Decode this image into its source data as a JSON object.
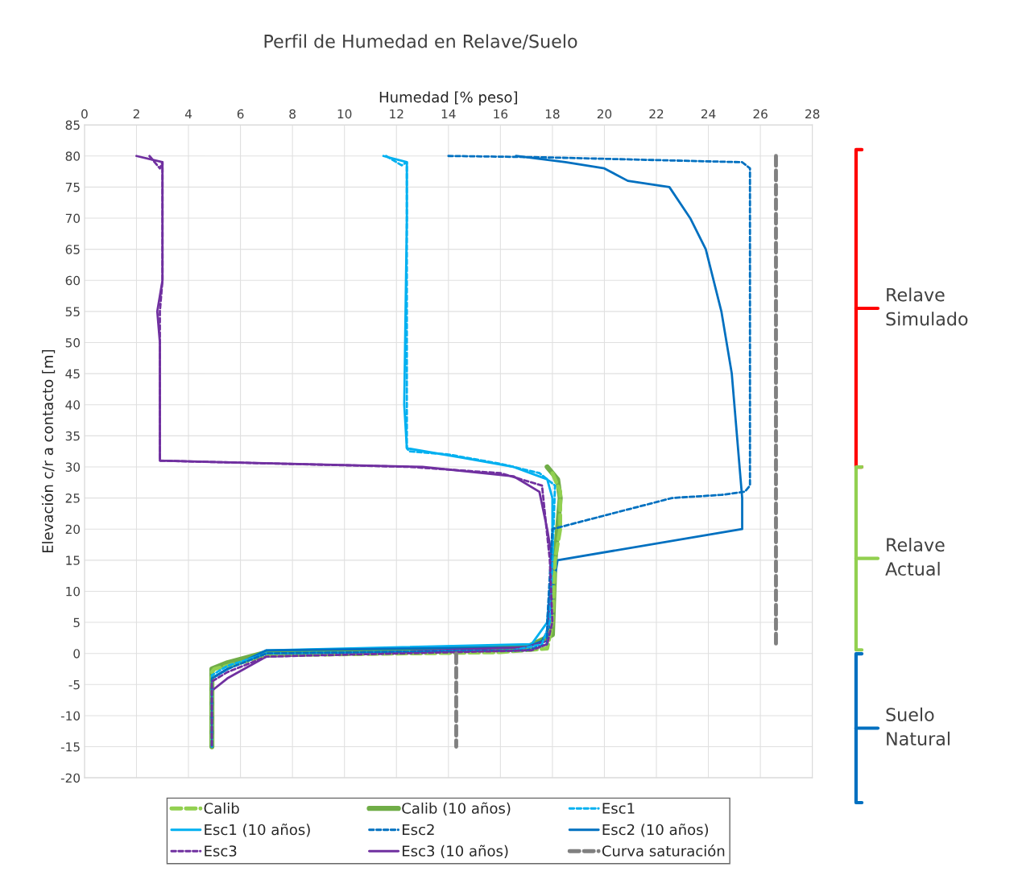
{
  "chart_data": {
    "type": "line",
    "title": "Perfil de Humedad en Relave/Suelo",
    "xlabel": "Humedad [% peso]",
    "ylabel": "Elevación c/r a contacto [m]",
    "xlim": [
      0,
      28
    ],
    "xticks": [
      0,
      2,
      4,
      6,
      8,
      10,
      12,
      14,
      16,
      18,
      20,
      22,
      24,
      26,
      28
    ],
    "ylim": [
      -20,
      85
    ],
    "yticks": [
      -20,
      -15,
      -10,
      -5,
      0,
      5,
      10,
      15,
      20,
      25,
      30,
      35,
      40,
      45,
      50,
      55,
      60,
      65,
      70,
      75,
      80,
      85
    ],
    "grid": true,
    "legend": "bottom",
    "marker": "none",
    "series": [
      {
        "name": "Calib",
        "color": "#92d050",
        "line_style": "dashed",
        "x": [
          18.0,
          18.3,
          18.3,
          18.1,
          18.0,
          17.8,
          16.0,
          7.0,
          6.0,
          5.0,
          4.9,
          4.9
        ],
        "values": [
          29,
          26,
          20,
          15,
          5,
          0.8,
          0.2,
          -0.3,
          -1.5,
          -2.5,
          -3,
          -15
        ]
      },
      {
        "name": "Calib (10 años)",
        "color": "#70ad47",
        "line_style": "solid",
        "x": [
          17.8,
          18.2,
          18.3,
          18.1,
          18.0,
          17.0,
          7.0,
          5.5,
          4.9,
          4.9
        ],
        "values": [
          30,
          28,
          25,
          15,
          3,
          1,
          0.2,
          -1.5,
          -2.5,
          -15
        ]
      },
      {
        "name": "Esc1",
        "color": "#00b0f0",
        "line_style": "dashed",
        "x": [
          11.6,
          12.2,
          12.4,
          12.4,
          12.5,
          14.0,
          16.0,
          17.5,
          18.1,
          18.0,
          17.9,
          17.6,
          16.5,
          7.0,
          5.5,
          4.9,
          4.9
        ],
        "values": [
          80,
          78.5,
          79,
          33,
          32.5,
          32,
          30.5,
          29,
          27,
          15,
          5,
          1.5,
          0.5,
          0,
          -2,
          -3.5,
          -15
        ]
      },
      {
        "name": "Esc1 (10 años)",
        "color": "#00b0f0",
        "line_style": "solid",
        "x": [
          11.5,
          12.4,
          12.4,
          12.3,
          12.4,
          14.5,
          16.5,
          17.8,
          18.0,
          18.0,
          17.8,
          17.2,
          7.0,
          5.5,
          4.9,
          4.9
        ],
        "values": [
          80,
          79,
          70,
          40,
          33,
          31.5,
          30,
          28,
          25,
          15,
          5,
          1.5,
          0.5,
          -2.5,
          -4,
          -15
        ]
      },
      {
        "name": "Esc2",
        "color": "#0070c0",
        "line_style": "dashed",
        "x": [
          14.0,
          17.5,
          25.3,
          25.6,
          25.6,
          25.4,
          24.5,
          22.6,
          18.0,
          17.8,
          17.8,
          17.0,
          7.0,
          5.5,
          4.9,
          4.9
        ],
        "values": [
          80,
          79.8,
          79,
          78,
          27,
          26,
          25.5,
          25,
          20,
          5,
          1.5,
          0.5,
          0,
          -2.5,
          -4,
          -15
        ]
      },
      {
        "name": "Esc2 (10 años)",
        "color": "#0070c0",
        "line_style": "solid",
        "x": [
          16.6,
          18.5,
          20.0,
          20.9,
          22.5,
          23.3,
          23.9,
          24.5,
          24.9,
          25.0,
          25.1,
          25.3,
          25.3,
          18.2,
          18.0,
          18.0,
          17.6,
          17.0,
          7.0,
          5.5,
          4.9,
          4.9
        ],
        "values": [
          80,
          79,
          78,
          76,
          75,
          70,
          65,
          55,
          45,
          40,
          35,
          25,
          20,
          15,
          10,
          5,
          2,
          1,
          0.5,
          -2.5,
          -4,
          -15
        ]
      },
      {
        "name": "Esc3",
        "color": "#7030a0",
        "line_style": "dashed",
        "x": [
          2.5,
          2.9,
          3.0,
          3.0,
          2.9,
          2.9,
          12.5,
          16.0,
          17.6,
          17.9,
          18.0,
          17.8,
          17.2,
          7.0,
          5.5,
          4.9,
          4.9
        ],
        "values": [
          80,
          78,
          79,
          60,
          55,
          31,
          30,
          29,
          27,
          15,
          5,
          1.5,
          0.5,
          -0.5,
          -3,
          -4.5,
          -15
        ]
      },
      {
        "name": "Esc3 (10 años)",
        "color": "#7030a0",
        "line_style": "solid",
        "x": [
          2.0,
          3.0,
          3.0,
          3.0,
          2.8,
          2.9,
          2.9,
          2.9,
          13.0,
          16.5,
          17.5,
          17.8,
          18.0,
          17.8,
          17.0,
          7.0,
          5.5,
          4.9,
          4.9
        ],
        "values": [
          80,
          79,
          70,
          60,
          55,
          50,
          33,
          31,
          30,
          28.5,
          26,
          20,
          15,
          2,
          1,
          -0.5,
          -4,
          -6,
          -15
        ]
      },
      {
        "name": "Curva saturación",
        "color": "#808080",
        "line_style": "dashed",
        "x": [
          26.6,
          26.6,
          null,
          14.3,
          14.3
        ],
        "values": [
          80,
          1,
          null,
          0,
          -15
        ]
      }
    ],
    "annotations": [
      "Relave Simulado",
      "Relave Actual",
      "Suelo Natural"
    ]
  }
}
